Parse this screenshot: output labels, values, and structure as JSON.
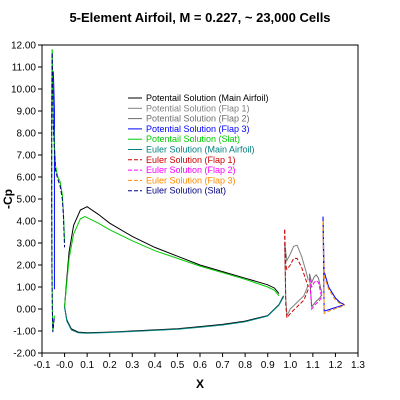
{
  "chart_data": {
    "type": "line",
    "title": "5-Element Airfoil, M = 0.227,  ~ 23,000 Cells",
    "xlabel": "X",
    "ylabel": "-Cp",
    "xlim": [
      -0.1,
      1.3
    ],
    "ylim": [
      -2.0,
      12.0
    ],
    "x_ticks": [
      "-0.1",
      "-0.0",
      "0.1",
      "0.2",
      "0.3",
      "0.4",
      "0.5",
      "0.6",
      "0.7",
      "0.8",
      "0.9",
      "1.0",
      "1.1",
      "1.2",
      "1.3"
    ],
    "y_ticks": [
      "-2.00",
      "-1.00",
      "0.00",
      "1.00",
      "2.00",
      "3.00",
      "4.00",
      "5.00",
      "6.00",
      "7.00",
      "8.00",
      "9.00",
      "10.00",
      "11.00",
      "12.00"
    ],
    "grid": false,
    "legend_position": "center",
    "series": [
      {
        "name": "Potentail Solution (Main Airfoil)",
        "color": "#000000",
        "dash": "solid",
        "curves": [
          [
            [
              0.0,
              0.1
            ],
            [
              0.01,
              1.4
            ],
            [
              0.02,
              2.6
            ],
            [
              0.04,
              3.8
            ],
            [
              0.07,
              4.5
            ],
            [
              0.1,
              4.65
            ],
            [
              0.15,
              4.3
            ],
            [
              0.2,
              3.9
            ],
            [
              0.3,
              3.3
            ],
            [
              0.4,
              2.8
            ],
            [
              0.5,
              2.4
            ],
            [
              0.6,
              2.0
            ],
            [
              0.7,
              1.7
            ],
            [
              0.8,
              1.4
            ],
            [
              0.9,
              1.1
            ],
            [
              0.93,
              0.95
            ],
            [
              0.95,
              0.7
            ]
          ],
          [
            [
              0.0,
              0.1
            ],
            [
              0.01,
              -0.5
            ],
            [
              0.03,
              -0.9
            ],
            [
              0.06,
              -1.05
            ],
            [
              0.1,
              -1.08
            ],
            [
              0.2,
              -1.05
            ],
            [
              0.3,
              -1.0
            ],
            [
              0.4,
              -0.95
            ],
            [
              0.5,
              -0.9
            ],
            [
              0.6,
              -0.8
            ],
            [
              0.7,
              -0.7
            ],
            [
              0.8,
              -0.55
            ],
            [
              0.9,
              -0.3
            ],
            [
              0.95,
              0.2
            ],
            [
              0.97,
              0.6
            ]
          ]
        ]
      },
      {
        "name": "Potential Solution (Flap 1)",
        "color": "#808080",
        "dash": "solid",
        "curves": [
          [
            [
              0.975,
              3.0
            ],
            [
              0.985,
              2.2
            ],
            [
              1.0,
              2.5
            ],
            [
              1.015,
              2.85
            ],
            [
              1.03,
              2.9
            ],
            [
              1.05,
              2.4
            ],
            [
              1.07,
              1.7
            ],
            [
              1.08,
              1.3
            ]
          ],
          [
            [
              0.975,
              3.0
            ],
            [
              0.98,
              0.5
            ],
            [
              0.985,
              -0.3
            ],
            [
              1.0,
              0.0
            ],
            [
              1.03,
              0.3
            ],
            [
              1.06,
              0.6
            ],
            [
              1.08,
              1.1
            ]
          ]
        ]
      },
      {
        "name": "Potential Solution (Flap 2)",
        "color": "#6e6e6e",
        "dash": "solid",
        "curves": [
          [
            [
              1.085,
              1.6
            ],
            [
              1.095,
              1.2
            ],
            [
              1.105,
              1.45
            ],
            [
              1.115,
              1.55
            ],
            [
              1.125,
              1.4
            ],
            [
              1.14,
              0.7
            ]
          ],
          [
            [
              1.085,
              1.6
            ],
            [
              1.095,
              0.1
            ],
            [
              1.11,
              0.3
            ],
            [
              1.13,
              0.5
            ],
            [
              1.14,
              0.65
            ]
          ]
        ]
      },
      {
        "name": "Potential Solution (Flap 3)",
        "color": "#0000ff",
        "dash": "solid",
        "curves": [
          [
            [
              -0.045,
              0.9
            ],
            [
              -0.045,
              9.0
            ],
            [
              -0.048,
              10.2
            ],
            [
              -0.05,
              10.8
            ]
          ],
          [
            [
              1.145,
              4.2
            ],
            [
              1.15,
              1.7
            ],
            [
              1.17,
              1.0
            ],
            [
              1.2,
              0.5
            ],
            [
              1.22,
              0.3
            ],
            [
              1.24,
              0.2
            ]
          ],
          [
            [
              1.145,
              4.2
            ],
            [
              1.15,
              -0.1
            ],
            [
              1.18,
              0.0
            ],
            [
              1.21,
              0.1
            ],
            [
              1.24,
              0.2
            ]
          ]
        ]
      },
      {
        "name": "Potentail Solution (Slat)",
        "color": "#00cc00",
        "dash": "solid",
        "curves": [
          [
            [
              -0.055,
              11.8
            ],
            [
              -0.052,
              10.0
            ],
            [
              -0.05,
              8.5
            ],
            [
              -0.045,
              7.5
            ],
            [
              -0.04,
              6.5
            ],
            [
              -0.03,
              6.0
            ],
            [
              -0.02,
              5.8
            ],
            [
              -0.01,
              5.2
            ],
            [
              -0.005,
              4.4
            ],
            [
              0.0,
              3.0
            ]
          ],
          [
            [
              -0.055,
              11.8
            ],
            [
              -0.057,
              9.0
            ],
            [
              -0.057,
              5.0
            ],
            [
              -0.056,
              2.0
            ],
            [
              -0.054,
              0.0
            ],
            [
              -0.052,
              -1.0
            ],
            [
              -0.045,
              -0.3
            ]
          ],
          [
            [
              0.0,
              0.1
            ],
            [
              0.01,
              1.2
            ],
            [
              0.02,
              2.3
            ],
            [
              0.04,
              3.4
            ],
            [
              0.07,
              4.1
            ],
            [
              0.09,
              4.2
            ],
            [
              0.15,
              3.9
            ],
            [
              0.2,
              3.6
            ],
            [
              0.3,
              3.1
            ],
            [
              0.4,
              2.65
            ],
            [
              0.5,
              2.3
            ],
            [
              0.6,
              1.95
            ],
            [
              0.7,
              1.65
            ],
            [
              0.8,
              1.35
            ],
            [
              0.9,
              1.0
            ],
            [
              0.93,
              0.85
            ],
            [
              0.95,
              0.6
            ]
          ]
        ]
      },
      {
        "name": "Euler Solution (Main Airfoil)",
        "color": "#008080",
        "dash": "solid",
        "curves": [
          [
            [
              0.0,
              0.1
            ],
            [
              0.01,
              -0.55
            ],
            [
              0.03,
              -0.95
            ],
            [
              0.06,
              -1.08
            ],
            [
              0.1,
              -1.1
            ],
            [
              0.2,
              -1.07
            ],
            [
              0.3,
              -1.02
            ],
            [
              0.4,
              -0.97
            ],
            [
              0.5,
              -0.92
            ],
            [
              0.6,
              -0.83
            ],
            [
              0.7,
              -0.73
            ],
            [
              0.8,
              -0.58
            ],
            [
              0.9,
              -0.32
            ],
            [
              0.95,
              0.18
            ],
            [
              0.97,
              0.55
            ]
          ]
        ]
      },
      {
        "name": "Euler Solution (Flap 1)",
        "color": "#cc0000",
        "dash": "dash",
        "curves": [
          [
            [
              0.975,
              3.6
            ],
            [
              0.98,
              2.0
            ],
            [
              0.985,
              1.8
            ],
            [
              1.0,
              2.0
            ],
            [
              1.015,
              2.3
            ],
            [
              1.03,
              2.3
            ],
            [
              1.05,
              1.9
            ],
            [
              1.07,
              1.3
            ],
            [
              1.08,
              1.0
            ]
          ],
          [
            [
              0.975,
              3.6
            ],
            [
              0.98,
              0.2
            ],
            [
              0.985,
              -0.4
            ],
            [
              1.0,
              -0.2
            ],
            [
              1.03,
              0.1
            ],
            [
              1.06,
              0.4
            ],
            [
              1.08,
              0.9
            ]
          ]
        ]
      },
      {
        "name": "Euler Solution (Flap 2)",
        "color": "#ff00ff",
        "dash": "dash",
        "curves": [
          [
            [
              1.085,
              1.4
            ],
            [
              1.095,
              1.0
            ],
            [
              1.105,
              1.2
            ],
            [
              1.115,
              1.3
            ],
            [
              1.125,
              1.2
            ],
            [
              1.14,
              0.5
            ]
          ],
          [
            [
              1.085,
              1.4
            ],
            [
              1.095,
              0.0
            ],
            [
              1.11,
              0.2
            ],
            [
              1.13,
              0.4
            ],
            [
              1.14,
              0.55
            ]
          ]
        ]
      },
      {
        "name": "Euler Solution (Flap 3)",
        "color": "#ff8c00",
        "dash": "dash",
        "curves": [
          [
            [
              1.145,
              4.0
            ],
            [
              1.15,
              1.5
            ],
            [
              1.17,
              0.9
            ],
            [
              1.2,
              0.4
            ],
            [
              1.22,
              0.25
            ],
            [
              1.24,
              0.15
            ]
          ],
          [
            [
              1.145,
              4.0
            ],
            [
              1.15,
              -0.2
            ],
            [
              1.18,
              -0.05
            ],
            [
              1.21,
              0.05
            ],
            [
              1.24,
              0.15
            ]
          ]
        ]
      },
      {
        "name": "Euler Solution (Slat)",
        "color": "#000080",
        "dash": "dash",
        "curves": [
          [
            [
              -0.055,
              11.6
            ],
            [
              -0.052,
              9.8
            ],
            [
              -0.05,
              8.3
            ],
            [
              -0.045,
              7.3
            ],
            [
              -0.04,
              6.3
            ],
            [
              -0.03,
              5.9
            ],
            [
              -0.02,
              5.6
            ],
            [
              -0.01,
              5.0
            ],
            [
              -0.005,
              4.2
            ],
            [
              0.0,
              2.8
            ]
          ],
          [
            [
              -0.055,
              11.6
            ],
            [
              -0.057,
              8.8
            ],
            [
              -0.057,
              4.8
            ],
            [
              -0.056,
              1.8
            ],
            [
              -0.054,
              -0.1
            ],
            [
              -0.052,
              -1.05
            ],
            [
              -0.045,
              -0.35
            ]
          ]
        ]
      }
    ]
  }
}
